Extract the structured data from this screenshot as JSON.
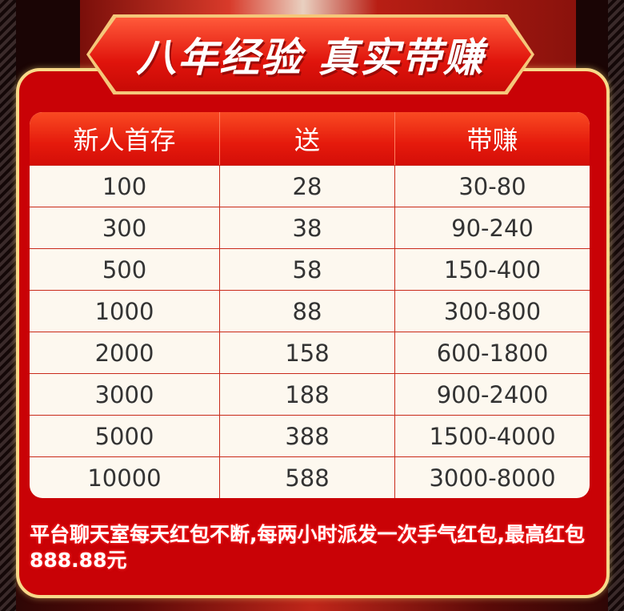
{
  "banner": {
    "title": "八年经验  真实带赚"
  },
  "table": {
    "headers": [
      "新人首存",
      "送",
      "带赚"
    ],
    "rows": [
      [
        "100",
        "28",
        "30-80"
      ],
      [
        "300",
        "38",
        "90-240"
      ],
      [
        "500",
        "58",
        "150-400"
      ],
      [
        "1000",
        "88",
        "300-800"
      ],
      [
        "2000",
        "158",
        "600-1800"
      ],
      [
        "3000",
        "188",
        "900-2400"
      ],
      [
        "5000",
        "388",
        "1500-4000"
      ],
      [
        "10000",
        "588",
        "3000-8000"
      ]
    ]
  },
  "footer": {
    "text": "平台聊天室每天红包不断,每两小时派发一次手气红包,最高红包888.88元"
  },
  "colors": {
    "card": "#c90206",
    "border": "#f7d98a",
    "header": "#e51a0c",
    "cell_bg": "#fdf8ef"
  }
}
